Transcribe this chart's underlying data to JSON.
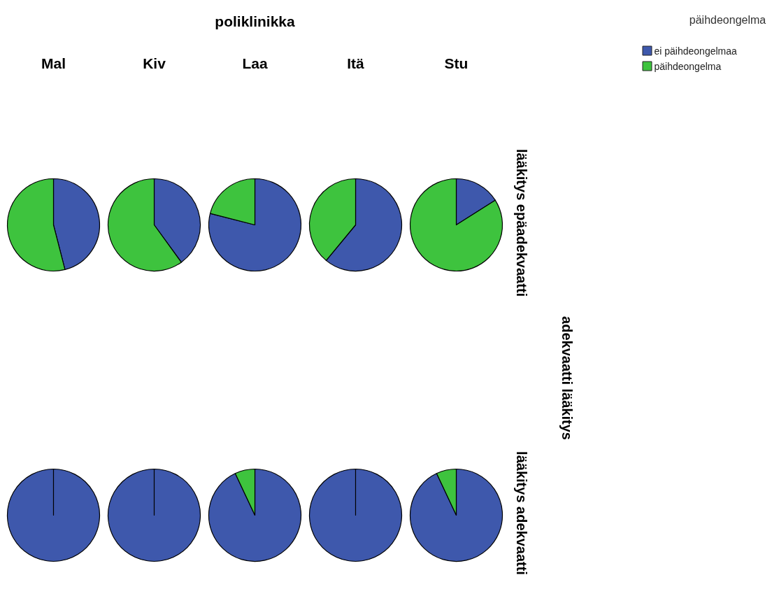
{
  "chart_data": [
    {
      "type": "other",
      "title": "poliklinikka",
      "annotations": [
        "adekvaatti lääkitys"
      ]
    },
    {
      "type": "pie",
      "title": "Mal",
      "categories": [
        "ei päihdeongelmaa",
        "päihdeongelma"
      ],
      "values": [
        46,
        54
      ],
      "colors": [
        "#3e58ac",
        "#3ec33e"
      ],
      "legend": "top right",
      "legend_title": "päihdeongelma"
    },
    {
      "type": "pie",
      "title": "Kiv",
      "values": [
        40,
        60
      ],
      "colors": [
        "#3e58ac",
        "#3ec33e"
      ]
    },
    {
      "type": "pie",
      "title": "Laa",
      "values": [
        79,
        21
      ],
      "colors": [
        "#3e58ac",
        "#3ec33e"
      ]
    },
    {
      "type": "pie",
      "title": "Itä",
      "values": [
        61,
        39
      ],
      "colors": [
        "#3e58ac",
        "#3ec33e"
      ]
    },
    {
      "type": "pie",
      "title": "Stu",
      "values": [
        16,
        84
      ],
      "colors": [
        "#3e58ac",
        "#3ec33e"
      ],
      "ylabel": "lääkitys epäadekvaatti"
    },
    {
      "type": "pie",
      "values": [
        100,
        0
      ],
      "colors": [
        "#3e58ac",
        "#3ec33e"
      ]
    },
    {
      "type": "pie",
      "values": [
        100,
        0
      ],
      "colors": [
        "#3e58ac",
        "#3ec33e"
      ]
    },
    {
      "type": "pie",
      "values": [
        93,
        7
      ],
      "colors": [
        "#3e58ac",
        "#3ec33e"
      ]
    },
    {
      "type": "pie",
      "values": [
        100,
        0
      ],
      "colors": [
        "#3e58ac",
        "#3ec33e"
      ]
    },
    {
      "type": "pie",
      "values": [
        93,
        7
      ],
      "colors": [
        "#3e58ac",
        "#3ec33e"
      ],
      "ylabel": "lääkitys adekvaatti"
    }
  ]
}
